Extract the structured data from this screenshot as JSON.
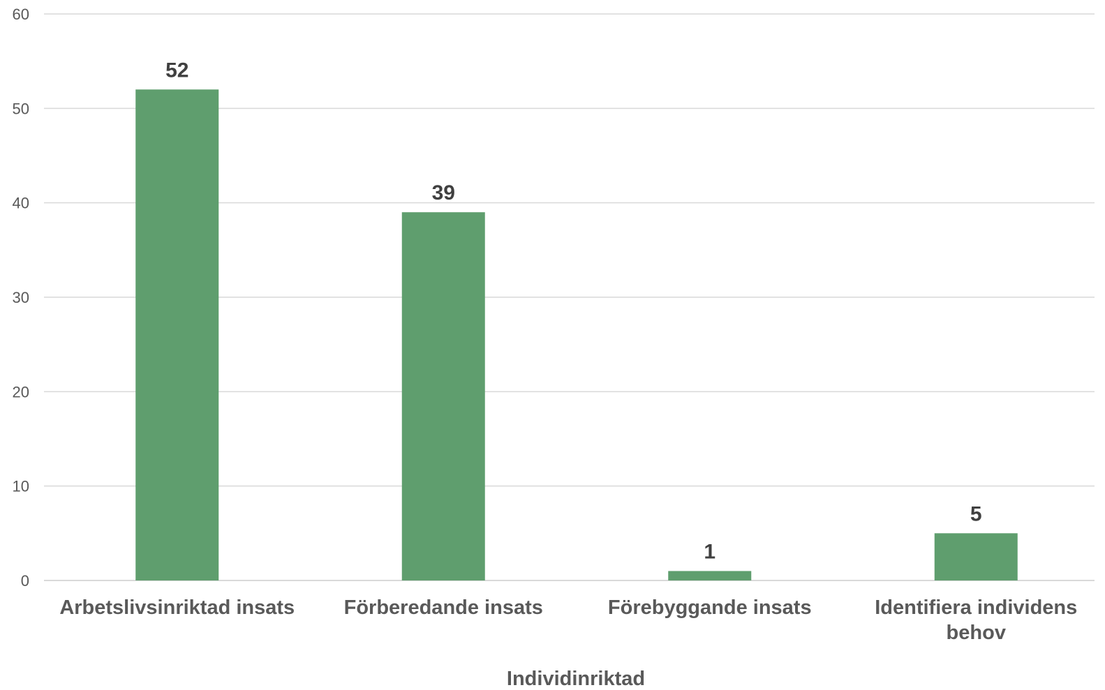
{
  "chart_data": {
    "type": "bar",
    "categories": [
      [
        "Arbetslivsinriktad insats"
      ],
      [
        "Förberedande insats"
      ],
      [
        "Förebyggande insats"
      ],
      [
        "Identifiera individens",
        "behov"
      ]
    ],
    "values": [
      52,
      39,
      1,
      5
    ],
    "data_labels": [
      "52",
      "39",
      "1",
      "5"
    ],
    "title": "",
    "xlabel": "Individinriktad",
    "ylabel": "",
    "ylim": [
      0,
      60
    ],
    "yticks": [
      0,
      10,
      20,
      30,
      40,
      50,
      60
    ],
    "grid": true,
    "legend": "none",
    "bar_color": "#5f9e6e"
  }
}
